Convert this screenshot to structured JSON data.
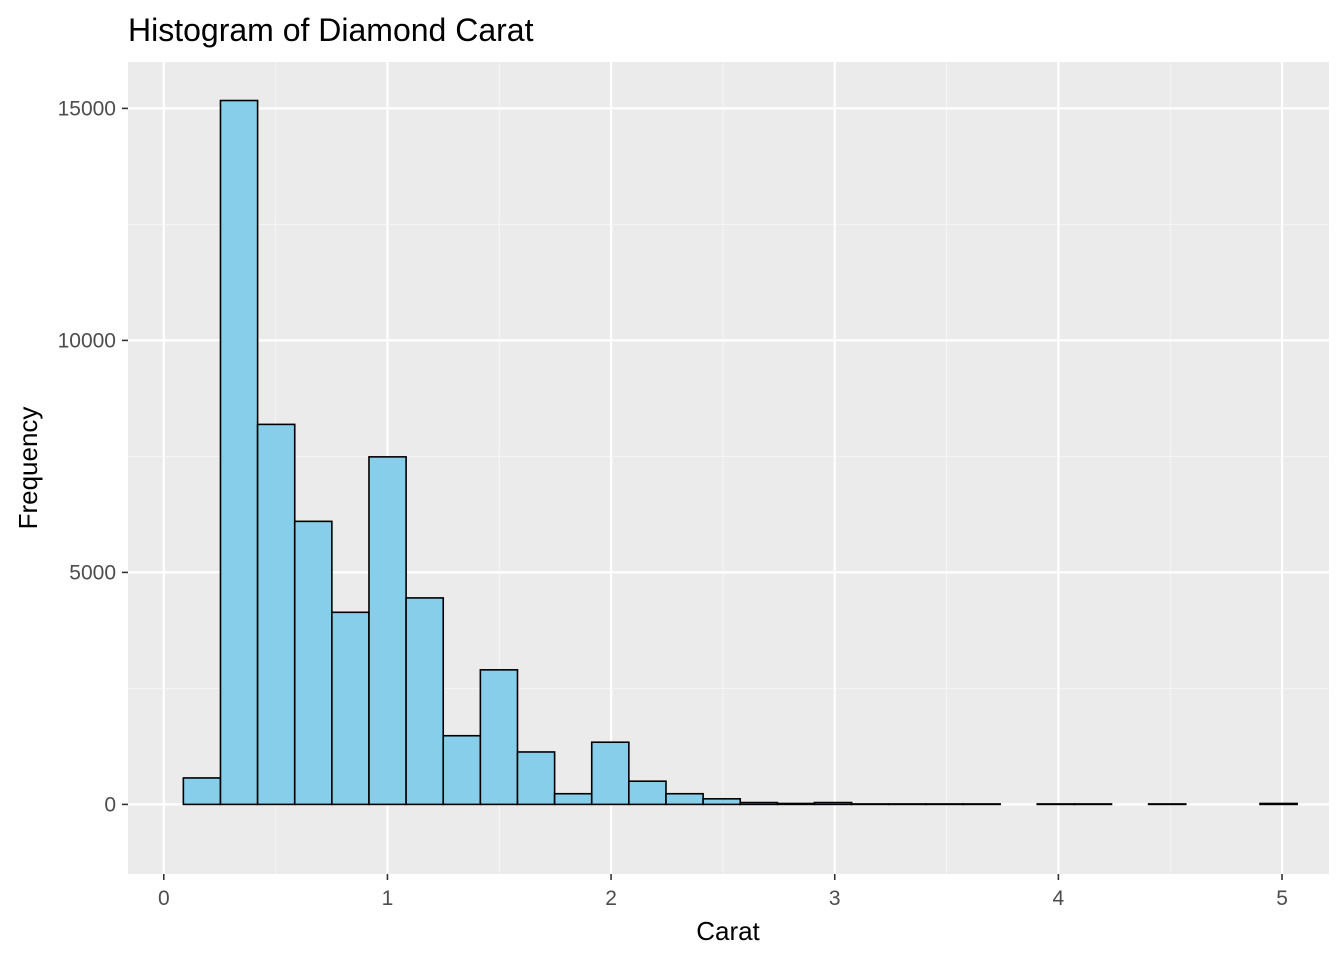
{
  "chart_data": {
    "type": "bar",
    "title": "Histogram of Diamond Carat",
    "xlabel": "Carat",
    "ylabel": "Frequency",
    "xlim": [
      -0.16,
      5.21
    ],
    "ylim": [
      -1500,
      16000
    ],
    "x_ticks": [
      0,
      1,
      2,
      3,
      4,
      5
    ],
    "x_minor_ticks": [
      0.5,
      1.5,
      2.5,
      3.5,
      4.5
    ],
    "y_ticks": [
      0,
      5000,
      10000,
      15000
    ],
    "y_minor_ticks": [
      2500,
      7500,
      12500
    ],
    "grid": true,
    "colors": {
      "panel_background": "#ebebeb",
      "grid_major": "#ffffff",
      "grid_minor": "#f5f5f5",
      "bar_fill": "#87ceeb",
      "bar_outline": "#000000",
      "tick_label": "#4d4d4d"
    },
    "bins": [
      {
        "x0": 0.0875,
        "x1": 0.2535,
        "count": 570
      },
      {
        "x0": 0.2535,
        "x1": 0.4195,
        "count": 15170
      },
      {
        "x0": 0.4195,
        "x1": 0.5855,
        "count": 8190
      },
      {
        "x0": 0.5855,
        "x1": 0.7515,
        "count": 6100
      },
      {
        "x0": 0.7515,
        "x1": 0.9175,
        "count": 4140
      },
      {
        "x0": 0.9175,
        "x1": 1.0835,
        "count": 7490
      },
      {
        "x0": 1.0835,
        "x1": 1.2495,
        "count": 4450
      },
      {
        "x0": 1.2495,
        "x1": 1.4155,
        "count": 1480
      },
      {
        "x0": 1.4155,
        "x1": 1.5815,
        "count": 2900
      },
      {
        "x0": 1.5815,
        "x1": 1.7475,
        "count": 1130
      },
      {
        "x0": 1.7475,
        "x1": 1.9135,
        "count": 230
      },
      {
        "x0": 1.9135,
        "x1": 2.0795,
        "count": 1340
      },
      {
        "x0": 2.0795,
        "x1": 2.2455,
        "count": 500
      },
      {
        "x0": 2.2455,
        "x1": 2.4115,
        "count": 230
      },
      {
        "x0": 2.4115,
        "x1": 2.5775,
        "count": 120
      },
      {
        "x0": 2.5775,
        "x1": 2.7435,
        "count": 40
      },
      {
        "x0": 2.7435,
        "x1": 2.9095,
        "count": 20
      },
      {
        "x0": 2.9095,
        "x1": 3.0755,
        "count": 40
      },
      {
        "x0": 3.0755,
        "x1": 3.2415,
        "count": 10
      },
      {
        "x0": 3.2415,
        "x1": 3.4075,
        "count": 10
      },
      {
        "x0": 3.4075,
        "x1": 3.5735,
        "count": 10
      },
      {
        "x0": 3.5735,
        "x1": 3.7395,
        "count": 10
      },
      {
        "x0": 3.7395,
        "x1": 3.9055,
        "count": 0
      },
      {
        "x0": 3.9055,
        "x1": 4.0715,
        "count": 10
      },
      {
        "x0": 4.0715,
        "x1": 4.2375,
        "count": 10
      },
      {
        "x0": 4.2375,
        "x1": 4.4035,
        "count": 0
      },
      {
        "x0": 4.4035,
        "x1": 4.5695,
        "count": 10
      },
      {
        "x0": 4.5695,
        "x1": 4.7355,
        "count": 0
      },
      {
        "x0": 4.7355,
        "x1": 4.9015,
        "count": 0
      },
      {
        "x0": 4.9015,
        "x1": 5.0675,
        "count": 20
      }
    ]
  }
}
